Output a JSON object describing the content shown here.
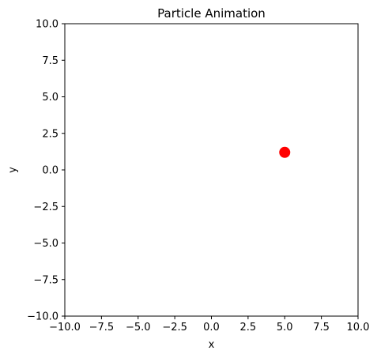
{
  "chart_data": {
    "type": "scatter",
    "title": "Particle Animation",
    "xlabel": "x",
    "ylabel": "y",
    "xlim": [
      -10.0,
      10.0
    ],
    "ylim": [
      -10.0,
      10.0
    ],
    "xticks": [
      -10.0,
      -7.5,
      -5.0,
      -2.5,
      0.0,
      2.5,
      5.0,
      7.5,
      10.0
    ],
    "yticks": [
      -10.0,
      -7.5,
      -5.0,
      -2.5,
      0.0,
      2.5,
      5.0,
      7.5,
      10.0
    ],
    "xtick_labels": [
      "−10.0",
      "−7.5",
      "−5.0",
      "−2.5",
      "0.0",
      "2.5",
      "5.0",
      "7.5",
      "10.0"
    ],
    "ytick_labels": [
      "−10.0",
      "−7.5",
      "−5.0",
      "−2.5",
      "0.0",
      "2.5",
      "5.0",
      "7.5",
      "10.0"
    ],
    "grid": false,
    "series": [
      {
        "points": [
          {
            "x": 5.0,
            "y": 1.2
          }
        ],
        "color": "#ff0000"
      }
    ]
  }
}
